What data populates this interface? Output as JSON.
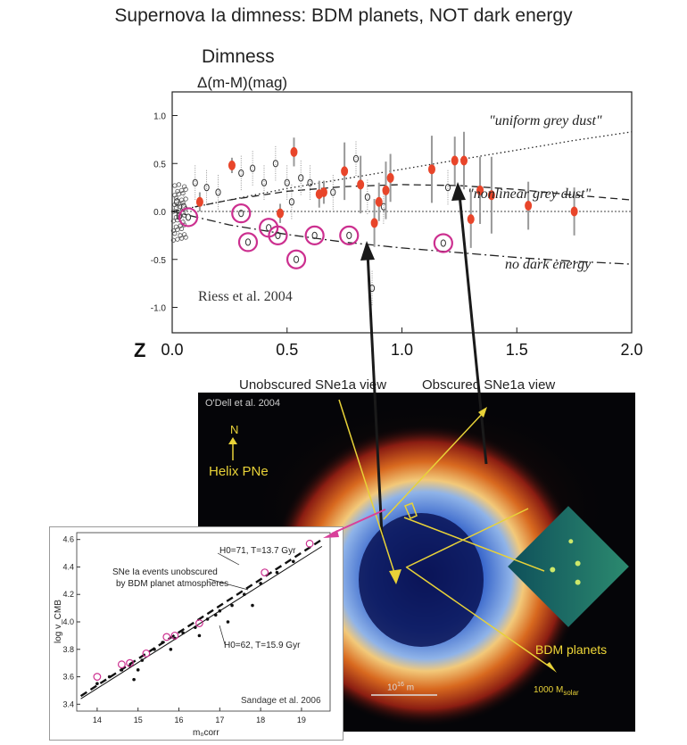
{
  "page": {
    "title": "Supernova Ia dimness: BDM planets, NOT dark energy"
  },
  "main_chart": {
    "ylabel_line1": "Dimness",
    "ylabel_line2": "Δ(m-M)(mag)",
    "xlabel": "Z",
    "credit": "Riess et al. 2004"
  },
  "labels": {
    "unobscured": "Unobscured SNe1a view",
    "obscured": "Obscured SNe1a view",
    "photo_credit": "O'Dell et al. 2004",
    "north": "N",
    "helix": "Helix PNe",
    "bdm": "BDM planets",
    "scale": "10",
    "scale_exp": "16",
    "scale_unit": " m",
    "mass_main": "1000 M",
    "mass_sub": "solar"
  },
  "colors": {
    "red": "#e8452a",
    "magenta": "#cc2f8f",
    "yellow": "#e8d238",
    "arrow_pink": "#d8409a"
  },
  "chart_data": [
    {
      "type": "scatter",
      "title": "Supernova Ia dimness",
      "xlabel": "Z",
      "ylabel": "Dimness Δ(m-M)(mag)",
      "xlim": [
        0,
        2.0
      ],
      "ylim": [
        -1.2,
        1.25
      ],
      "xticks": [
        "0.0",
        "0.5",
        "1.0",
        "1.5",
        "2.0"
      ],
      "yticks": [
        "1.0",
        "0.5",
        "0.0",
        "-0.5",
        "-1.0"
      ],
      "curves": [
        {
          "name": "\"uniform grey dust\"",
          "style": "dotted",
          "x": [
            0,
            0.25,
            0.5,
            0.75,
            1.0,
            1.25,
            1.5,
            1.75,
            2.0
          ],
          "y": [
            0,
            0.12,
            0.24,
            0.34,
            0.44,
            0.54,
            0.64,
            0.74,
            0.83
          ]
        },
        {
          "name": "\"nonlinear grey dust\"",
          "style": "dashed",
          "x": [
            0,
            0.25,
            0.5,
            0.75,
            1.0,
            1.25,
            1.5,
            1.75,
            2.0
          ],
          "y": [
            0,
            0.12,
            0.21,
            0.26,
            0.28,
            0.27,
            0.23,
            0.17,
            0.12
          ]
        },
        {
          "name": "no dark energy",
          "style": "dashdot",
          "x": [
            0,
            0.25,
            0.5,
            0.75,
            1.0,
            1.25,
            1.5,
            1.75,
            2.0
          ],
          "y": [
            0,
            -0.14,
            -0.24,
            -0.32,
            -0.38,
            -0.43,
            -0.48,
            -0.52,
            -0.55
          ]
        }
      ],
      "gold_points": [
        {
          "x": 0.12,
          "y": 0.1,
          "err": 0.1
        },
        {
          "x": 0.26,
          "y": 0.48,
          "err": 0.08
        },
        {
          "x": 0.53,
          "y": 0.62,
          "err": 0.15
        },
        {
          "x": 0.64,
          "y": 0.18,
          "err": 0.14
        },
        {
          "x": 0.66,
          "y": 0.2,
          "err": 0.12
        },
        {
          "x": 0.75,
          "y": 0.42,
          "err": 0.3
        },
        {
          "x": 0.82,
          "y": 0.28,
          "err": 0.3
        },
        {
          "x": 0.88,
          "y": -0.12,
          "err": 0.25
        },
        {
          "x": 0.9,
          "y": 0.1,
          "err": 0.2
        },
        {
          "x": 0.93,
          "y": 0.22,
          "err": 0.3
        },
        {
          "x": 0.95,
          "y": 0.35,
          "err": 0.25
        },
        {
          "x": 1.13,
          "y": 0.44,
          "err": 0.35
        },
        {
          "x": 1.23,
          "y": 0.53,
          "err": 0.25
        },
        {
          "x": 1.27,
          "y": 0.53,
          "err": 0.3
        },
        {
          "x": 1.3,
          "y": -0.08,
          "err": 0.3
        },
        {
          "x": 1.34,
          "y": 0.22,
          "err": 0.35
        },
        {
          "x": 1.39,
          "y": 0.17,
          "err": 0.4
        },
        {
          "x": 1.55,
          "y": 0.06,
          "err": 0.25
        },
        {
          "x": 1.75,
          "y": 0.0,
          "err": 0.25
        },
        {
          "x": 0.47,
          "y": -0.02,
          "err": 0.1
        }
      ],
      "highlighted_points": [
        {
          "x": 0.07,
          "y": -0.06
        },
        {
          "x": 0.3,
          "y": -0.02
        },
        {
          "x": 0.33,
          "y": -0.32
        },
        {
          "x": 0.42,
          "y": -0.17
        },
        {
          "x": 0.46,
          "y": -0.25
        },
        {
          "x": 0.54,
          "y": -0.5
        },
        {
          "x": 0.62,
          "y": -0.25
        },
        {
          "x": 0.77,
          "y": -0.25
        },
        {
          "x": 1.18,
          "y": -0.33
        }
      ],
      "gray_points": [
        {
          "x": 0.02,
          "y": 0.1
        },
        {
          "x": 0.03,
          "y": -0.05
        },
        {
          "x": 0.05,
          "y": 0.05
        },
        {
          "x": 0.1,
          "y": 0.3
        },
        {
          "x": 0.15,
          "y": 0.25
        },
        {
          "x": 0.2,
          "y": 0.2
        },
        {
          "x": 0.3,
          "y": 0.4
        },
        {
          "x": 0.35,
          "y": 0.45
        },
        {
          "x": 0.4,
          "y": 0.3
        },
        {
          "x": 0.45,
          "y": 0.5
        },
        {
          "x": 0.5,
          "y": 0.3
        },
        {
          "x": 0.52,
          "y": 0.1
        },
        {
          "x": 0.56,
          "y": 0.35
        },
        {
          "x": 0.6,
          "y": 0.3
        },
        {
          "x": 0.7,
          "y": 0.2
        },
        {
          "x": 0.8,
          "y": 0.55
        },
        {
          "x": 0.85,
          "y": 0.15
        },
        {
          "x": 0.87,
          "y": -0.8
        },
        {
          "x": 1.2,
          "y": 0.25
        },
        {
          "x": 0.92,
          "y": 0.05
        }
      ]
    },
    {
      "type": "scatter",
      "xlabel": "m₀corr",
      "ylabel": "log v_CMB",
      "xlim": [
        13.5,
        19.7
      ],
      "ylim": [
        3.35,
        4.65
      ],
      "xticks": [
        "14",
        "15",
        "16",
        "17",
        "18",
        "19"
      ],
      "yticks": [
        "4.6",
        "4.4",
        "4.2",
        "4.0",
        "3.8",
        "3.6",
        "3.4"
      ],
      "annotations": {
        "h71": "H0=71, T=13.7 Gyr",
        "h62": "H0=62, T=15.9 Gyr",
        "unobscured_line1": "SNe Ia events unobscured",
        "unobscured_line2": "by BDM planet atmospheres",
        "credit": "Sandage et al. 2006"
      },
      "lines": [
        {
          "name": "H0=71",
          "style": "dashed",
          "x": [
            13.6,
            19.5
          ],
          "y": [
            3.46,
            4.6
          ]
        },
        {
          "name": "H0=62",
          "style": "solid",
          "x": [
            13.6,
            19.5
          ],
          "y": [
            3.44,
            4.55
          ]
        }
      ],
      "points": [
        {
          "x": 14.0,
          "y": 3.55
        },
        {
          "x": 14.3,
          "y": 3.6
        },
        {
          "x": 14.6,
          "y": 3.65
        },
        {
          "x": 14.8,
          "y": 3.68
        },
        {
          "x": 15.1,
          "y": 3.72
        },
        {
          "x": 15.4,
          "y": 3.8
        },
        {
          "x": 15.6,
          "y": 3.85
        },
        {
          "x": 15.9,
          "y": 3.88
        },
        {
          "x": 16.1,
          "y": 3.92
        },
        {
          "x": 16.4,
          "y": 3.96
        },
        {
          "x": 16.7,
          "y": 4.02
        },
        {
          "x": 17.0,
          "y": 4.08
        },
        {
          "x": 17.3,
          "y": 4.12
        },
        {
          "x": 17.6,
          "y": 4.2
        },
        {
          "x": 18.0,
          "y": 4.28
        },
        {
          "x": 18.4,
          "y": 4.36
        },
        {
          "x": 18.8,
          "y": 4.44
        },
        {
          "x": 15.0,
          "y": 3.65
        },
        {
          "x": 15.8,
          "y": 3.8
        },
        {
          "x": 16.5,
          "y": 3.9
        },
        {
          "x": 17.2,
          "y": 4.0
        },
        {
          "x": 17.8,
          "y": 4.12
        },
        {
          "x": 16.9,
          "y": 4.05
        },
        {
          "x": 14.9,
          "y": 3.58
        }
      ],
      "highlighted_points": [
        {
          "x": 14.0,
          "y": 3.6
        },
        {
          "x": 14.6,
          "y": 3.69
        },
        {
          "x": 14.8,
          "y": 3.7
        },
        {
          "x": 15.2,
          "y": 3.77
        },
        {
          "x": 15.7,
          "y": 3.89
        },
        {
          "x": 15.9,
          "y": 3.9
        },
        {
          "x": 16.5,
          "y": 3.99
        },
        {
          "x": 18.1,
          "y": 4.36
        },
        {
          "x": 19.2,
          "y": 4.57
        }
      ]
    }
  ]
}
